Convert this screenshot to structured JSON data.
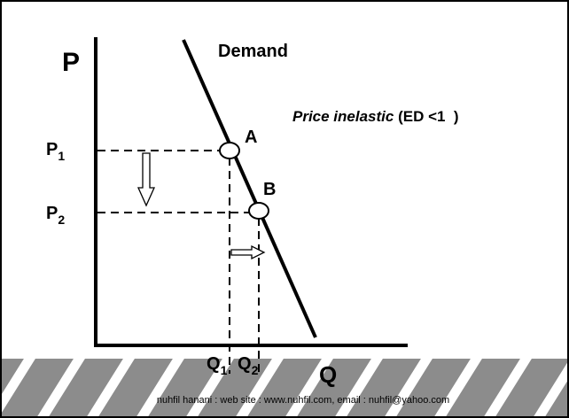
{
  "axis_labels": {
    "y": "P",
    "x": "Q"
  },
  "curve_label": "Demand",
  "annotation": {
    "text": "Price inelastic",
    "condition": "(ED <1  )"
  },
  "points": [
    {
      "label": "A"
    },
    {
      "label": "B"
    }
  ],
  "price_levels": [
    {
      "base": "P",
      "sub": "1"
    },
    {
      "base": "P",
      "sub": "2"
    }
  ],
  "quantity_levels": [
    {
      "base": "Q",
      "sub": "1"
    },
    {
      "base": "Q",
      "sub": "2"
    }
  ],
  "footer": "nuhfil hanani : web site : www.nuhfil.com, email : nuhfil@yahoo.com"
}
